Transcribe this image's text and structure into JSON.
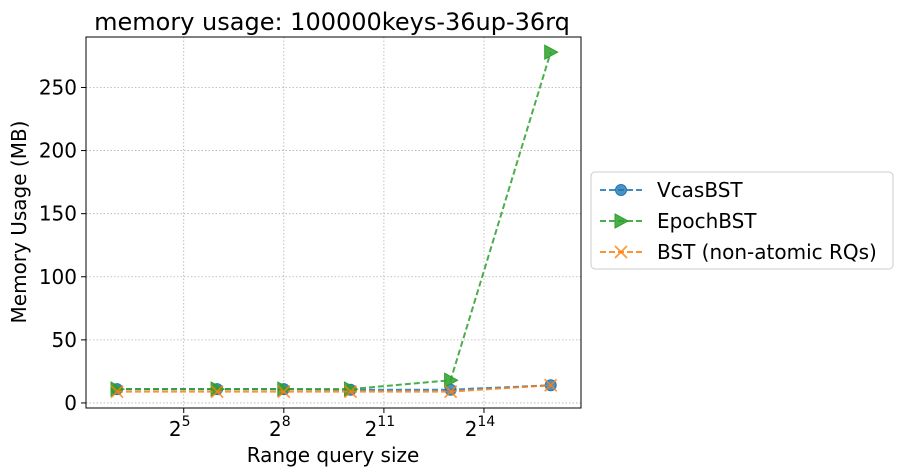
{
  "chart_data": {
    "type": "line",
    "title": "memory usage: 100000keys-36up-36rq",
    "xlabel": "Range query size",
    "ylabel": "Memory Usage (MB)",
    "x_scale": "log2",
    "x": [
      8,
      64,
      256,
      1024,
      8192,
      65536
    ],
    "xlim": [
      4.2,
      123000
    ],
    "ylim": [
      -4,
      290
    ],
    "x_ticks": [
      {
        "value": 32,
        "base": "2",
        "exp": "5"
      },
      {
        "value": 256,
        "base": "2",
        "exp": "8"
      },
      {
        "value": 2048,
        "base": "2",
        "exp": "11"
      },
      {
        "value": 16384,
        "base": "2",
        "exp": "14"
      }
    ],
    "y_ticks": [
      "0",
      "50",
      "100",
      "150",
      "200",
      "250"
    ],
    "grid": true,
    "legend_position": "outside-right",
    "series": [
      {
        "name": "VcasBST",
        "color": "#1f77b4",
        "marker": "circle",
        "values": [
          11,
          11,
          11,
          10.5,
          10.5,
          14
        ]
      },
      {
        "name": "EpochBST",
        "color": "#2ca02c",
        "marker": "triangle-right",
        "values": [
          11,
          11,
          11,
          11,
          18,
          278
        ]
      },
      {
        "name": "BST (non-atomic RQs)",
        "color": "#ff7f0e",
        "marker": "x",
        "values": [
          9,
          9,
          9,
          9,
          9,
          14
        ]
      }
    ]
  }
}
